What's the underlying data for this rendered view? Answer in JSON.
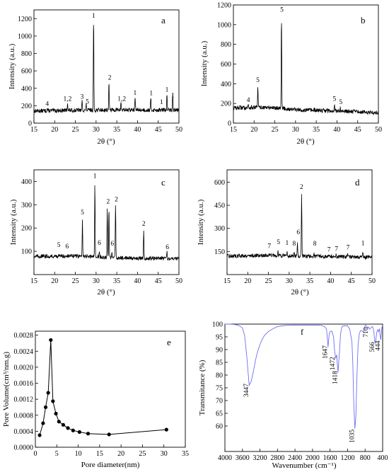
{
  "chart_data": [
    {
      "id": "a",
      "type": "line",
      "panel_label": "a",
      "xlabel": "2θ (°)",
      "ylabel": "Intensity (a.u.)",
      "xlim": [
        15,
        50
      ],
      "ylim": [
        0,
        1300
      ],
      "xticks": [
        "15",
        "20",
        "25",
        "30",
        "35",
        "40",
        "45",
        "50"
      ],
      "yticks": [
        "0",
        "200",
        "400",
        "600",
        "800",
        "1000",
        "1200"
      ],
      "xtick_values": [
        15,
        20,
        25,
        30,
        35,
        40,
        45,
        50
      ],
      "ytick_values": [
        0,
        200,
        400,
        600,
        800,
        1000,
        1200
      ],
      "grid": false,
      "legend": "none",
      "color": "#000000",
      "baseline": [
        [
          15,
          140
        ],
        [
          25,
          148
        ],
        [
          35,
          152
        ],
        [
          50,
          150
        ]
      ],
      "peaks": [
        [
          18.2,
          30
        ],
        [
          23.1,
          90
        ],
        [
          26.6,
          110
        ],
        [
          27.6,
          70
        ],
        [
          29.4,
          1040
        ],
        [
          33.1,
          330
        ],
        [
          36.0,
          90
        ],
        [
          39.4,
          160
        ],
        [
          43.2,
          130
        ],
        [
          47.1,
          180
        ],
        [
          48.5,
          165
        ]
      ],
      "annotations": [
        {
          "text": "4",
          "x": 18.2,
          "y": 200
        },
        {
          "text": "1,2",
          "x": 23.1,
          "y": 255
        },
        {
          "text": "3",
          "x": 26.6,
          "y": 280
        },
        {
          "text": "5",
          "x": 27.9,
          "y": 225
        },
        {
          "text": "1",
          "x": 29.4,
          "y": 1210
        },
        {
          "text": "2",
          "x": 33.3,
          "y": 500
        },
        {
          "text": "1,2",
          "x": 36.2,
          "y": 255
        },
        {
          "text": "1",
          "x": 39.4,
          "y": 325
        },
        {
          "text": "1",
          "x": 43.3,
          "y": 320
        },
        {
          "text": "1",
          "x": 45.8,
          "y": 220
        },
        {
          "text": "1",
          "x": 47.1,
          "y": 360
        },
        {
          "text": "1",
          "x": 48.5,
          "y": 295
        }
      ]
    },
    {
      "id": "b",
      "type": "line",
      "panel_label": "b",
      "xlabel": "2θ (°)",
      "ylabel": "Intensity (a.u.)",
      "xlim": [
        15,
        50
      ],
      "ylim": [
        0,
        1200
      ],
      "xticks": [
        "15",
        "20",
        "25",
        "30",
        "35",
        "40",
        "45",
        "50"
      ],
      "yticks": [
        "0",
        "200",
        "400",
        "600",
        "800",
        "1000",
        "1200"
      ],
      "xtick_values": [
        15,
        20,
        25,
        30,
        35,
        40,
        45,
        50
      ],
      "ytick_values": [
        0,
        200,
        400,
        600,
        800,
        1000,
        1200
      ],
      "grid": false,
      "legend": "none",
      "color": "#000000",
      "baseline": [
        [
          15,
          155
        ],
        [
          22,
          160
        ],
        [
          26,
          155
        ],
        [
          30,
          135
        ],
        [
          40,
          125
        ],
        [
          50,
          105
        ]
      ],
      "peaks": [
        [
          18.6,
          30
        ],
        [
          20.9,
          210
        ],
        [
          26.6,
          935
        ],
        [
          39.4,
          50
        ],
        [
          40.8,
          30
        ]
      ],
      "annotations": [
        {
          "text": "4",
          "x": 18.6,
          "y": 215
        },
        {
          "text": "5",
          "x": 20.9,
          "y": 415
        },
        {
          "text": "5",
          "x": 26.7,
          "y": 1130
        },
        {
          "text": "5",
          "x": 39.4,
          "y": 225
        },
        {
          "text": "5",
          "x": 40.9,
          "y": 195
        }
      ]
    },
    {
      "id": "c",
      "type": "line",
      "panel_label": "c",
      "xlabel": "2θ (°)",
      "ylabel": "Intensity (a.u.)",
      "xlim": [
        15,
        50
      ],
      "ylim": [
        0,
        450
      ],
      "xticks": [
        "15",
        "20",
        "25",
        "30",
        "35",
        "40",
        "45",
        "50"
      ],
      "yticks": [
        "100",
        "200",
        "300",
        "400"
      ],
      "xtick_values": [
        15,
        20,
        25,
        30,
        35,
        40,
        45,
        50
      ],
      "ytick_values": [
        100,
        200,
        300,
        400
      ],
      "grid": false,
      "legend": "none",
      "color": "#000000",
      "baseline": [
        [
          15,
          78
        ],
        [
          25,
          80
        ],
        [
          35,
          72
        ],
        [
          50,
          68
        ]
      ],
      "peaks": [
        [
          26.7,
          160
        ],
        [
          29.7,
          320
        ],
        [
          30.8,
          30
        ],
        [
          32.7,
          210
        ],
        [
          33.1,
          210
        ],
        [
          33.8,
          20
        ],
        [
          34.7,
          225
        ],
        [
          41.5,
          115
        ],
        [
          47.1,
          35
        ]
      ],
      "annotations": [
        {
          "text": "5",
          "x": 21.0,
          "y": 118
        },
        {
          "text": "6",
          "x": 23.0,
          "y": 112
        },
        {
          "text": "5",
          "x": 26.7,
          "y": 258
        },
        {
          "text": "1",
          "x": 29.7,
          "y": 415
        },
        {
          "text": "6",
          "x": 30.8,
          "y": 128
        },
        {
          "text": "2",
          "x": 32.9,
          "y": 305
        },
        {
          "text": "6",
          "x": 33.9,
          "y": 125
        },
        {
          "text": "2",
          "x": 34.9,
          "y": 315
        },
        {
          "text": "2",
          "x": 41.5,
          "y": 210
        },
        {
          "text": "6",
          "x": 47.2,
          "y": 110
        }
      ]
    },
    {
      "id": "d",
      "type": "line",
      "panel_label": "d",
      "xlabel": "2θ (°)",
      "ylabel": "Intensity (a.u.)",
      "xlim": [
        15,
        50
      ],
      "ylim": [
        0,
        680
      ],
      "xticks": [
        "15",
        "20",
        "25",
        "30",
        "35",
        "40",
        "45",
        "50"
      ],
      "yticks": [
        "150",
        "300",
        "450",
        "600"
      ],
      "xtick_values": [
        15,
        20,
        25,
        30,
        35,
        40,
        45,
        50
      ],
      "ytick_values": [
        150,
        300,
        450,
        600
      ],
      "grid": false,
      "legend": "none",
      "color": "#000000",
      "baseline": [
        [
          15,
          120
        ],
        [
          25,
          125
        ],
        [
          35,
          118
        ],
        [
          50,
          112
        ]
      ],
      "peaks": [
        [
          25.2,
          10
        ],
        [
          27.3,
          30
        ],
        [
          29.5,
          30
        ],
        [
          31.2,
          20
        ],
        [
          32.0,
          90
        ],
        [
          33.0,
          400
        ],
        [
          36.0,
          15
        ],
        [
          39.8,
          10
        ],
        [
          41.3,
          12
        ],
        [
          44.1,
          15
        ],
        [
          47.8,
          30
        ]
      ],
      "annotations": [
        {
          "text": "7",
          "x": 25.2,
          "y": 172
        },
        {
          "text": "5",
          "x": 27.4,
          "y": 198
        },
        {
          "text": "1",
          "x": 29.5,
          "y": 192
        },
        {
          "text": "8",
          "x": 31.2,
          "y": 188
        },
        {
          "text": "6",
          "x": 32.2,
          "y": 262
        },
        {
          "text": "2",
          "x": 33.0,
          "y": 555
        },
        {
          "text": "8",
          "x": 36.2,
          "y": 188
        },
        {
          "text": "7",
          "x": 39.6,
          "y": 150
        },
        {
          "text": "7",
          "x": 41.4,
          "y": 155
        },
        {
          "text": "7",
          "x": 44.2,
          "y": 162
        },
        {
          "text": "1",
          "x": 47.8,
          "y": 190
        }
      ]
    },
    {
      "id": "e",
      "type": "line",
      "panel_label": "e",
      "xlabel": "Pore diameter(nm)",
      "ylabel": "Pore Volume(cm³/nm.g)",
      "xlim": [
        0,
        35
      ],
      "ylim": [
        0,
        0.0029
      ],
      "xticks": [
        "0",
        "5",
        "10",
        "15",
        "20",
        "25",
        "30",
        "35"
      ],
      "yticks": [
        "0.0000",
        "0.0004",
        "0.0008",
        "0.0012",
        "0.0016",
        "0.0020",
        "0.0024",
        "0.0028"
      ],
      "xtick_values": [
        0,
        5,
        10,
        15,
        20,
        25,
        30,
        35
      ],
      "ytick_values": [
        0,
        0.0004,
        0.0008,
        0.0012,
        0.0016,
        0.002,
        0.0024,
        0.0028
      ],
      "grid": false,
      "legend": "none",
      "color": "#000000",
      "x": [
        1.0,
        1.8,
        2.4,
        3.0,
        3.6,
        4.1,
        4.8,
        5.5,
        6.5,
        7.6,
        8.8,
        10.3,
        12.3,
        17.2,
        30.6
      ],
      "y": [
        0.0003,
        0.0006,
        0.001,
        0.00136,
        0.00268,
        0.00115,
        0.00084,
        0.00064,
        0.00056,
        0.00048,
        0.00042,
        0.00038,
        0.00034,
        0.00032,
        0.00044
      ]
    },
    {
      "id": "f",
      "type": "line",
      "panel_label": "f",
      "xlabel": "Wavenumber (cm⁻¹)",
      "ylabel": "Transmitance (%)",
      "xlim": [
        4000,
        400
      ],
      "ylim": [
        50,
        100
      ],
      "xticks": [
        "4000",
        "3600",
        "3200",
        "2800",
        "2400",
        "2000",
        "1600",
        "1200",
        "800",
        "400"
      ],
      "yticks": [
        "60",
        "65",
        "70",
        "75",
        "80",
        "85",
        "90",
        "95",
        "100"
      ],
      "xtick_values": [
        4000,
        3600,
        3200,
        2800,
        2400,
        2000,
        1600,
        1200,
        800,
        400
      ],
      "ytick_values": [
        60,
        65,
        70,
        75,
        80,
        85,
        90,
        95,
        100
      ],
      "grid": false,
      "legend": "none",
      "color": "#6f6ff2",
      "x": [
        4000,
        3900,
        3800,
        3700,
        3600,
        3550,
        3500,
        3447,
        3400,
        3350,
        3300,
        3250,
        3200,
        3150,
        3100,
        3000,
        2900,
        2800,
        2700,
        2600,
        2400,
        2200,
        2000,
        1900,
        1800,
        1720,
        1680,
        1647,
        1620,
        1600,
        1560,
        1520,
        1500,
        1472,
        1450,
        1418,
        1390,
        1360,
        1330,
        1300,
        1280,
        1250,
        1220,
        1200,
        1150,
        1100,
        1080,
        1060,
        1035,
        1010,
        990,
        960,
        930,
        900,
        870,
        850,
        820,
        800,
        780,
        760,
        740,
        720,
        710,
        700,
        680,
        660,
        640,
        620,
        600,
        580,
        566,
        550,
        530,
        510,
        490,
        470,
        460,
        444,
        430,
        420,
        410,
        400
      ],
      "y": [
        100,
        100,
        99.9,
        99.6,
        98.5,
        95.5,
        87,
        76,
        77.5,
        81.5,
        86,
        89.5,
        92,
        94,
        95.5,
        97.2,
        98.2,
        99,
        99.3,
        99.5,
        99.6,
        99.6,
        99.6,
        99.6,
        99.5,
        99,
        98,
        91,
        96,
        97,
        97.3,
        95,
        90,
        86.5,
        88,
        81,
        88,
        96,
        99,
        99.3,
        99.3,
        99.3,
        99.3,
        99.3,
        98,
        93,
        84,
        70,
        59,
        64,
        78,
        92,
        96.5,
        97.5,
        97.3,
        97,
        97.6,
        99.5,
        99.5,
        99,
        98.5,
        98.8,
        98.4,
        98,
        98.3,
        98.8,
        99,
        98.6,
        97,
        93,
        92.5,
        94.5,
        97,
        97.8,
        97,
        98.2,
        96,
        93.8,
        96,
        98.5,
        99,
        99.5
      ],
      "annotations": [
        {
          "text": "3447",
          "x": 3470,
          "y": 74
        },
        {
          "text": "1647",
          "x": 1670,
          "y": 89
        },
        {
          "text": "1472",
          "x": 1495,
          "y": 84.5
        },
        {
          "text": "1418",
          "x": 1440,
          "y": 79
        },
        {
          "text": "1035",
          "x": 1055,
          "y": 56
        },
        {
          "text": "710",
          "x": 735,
          "y": 96.8
        },
        {
          "text": "566",
          "x": 590,
          "y": 91
        },
        {
          "text": "444",
          "x": 465,
          "y": 91.5
        }
      ]
    }
  ]
}
